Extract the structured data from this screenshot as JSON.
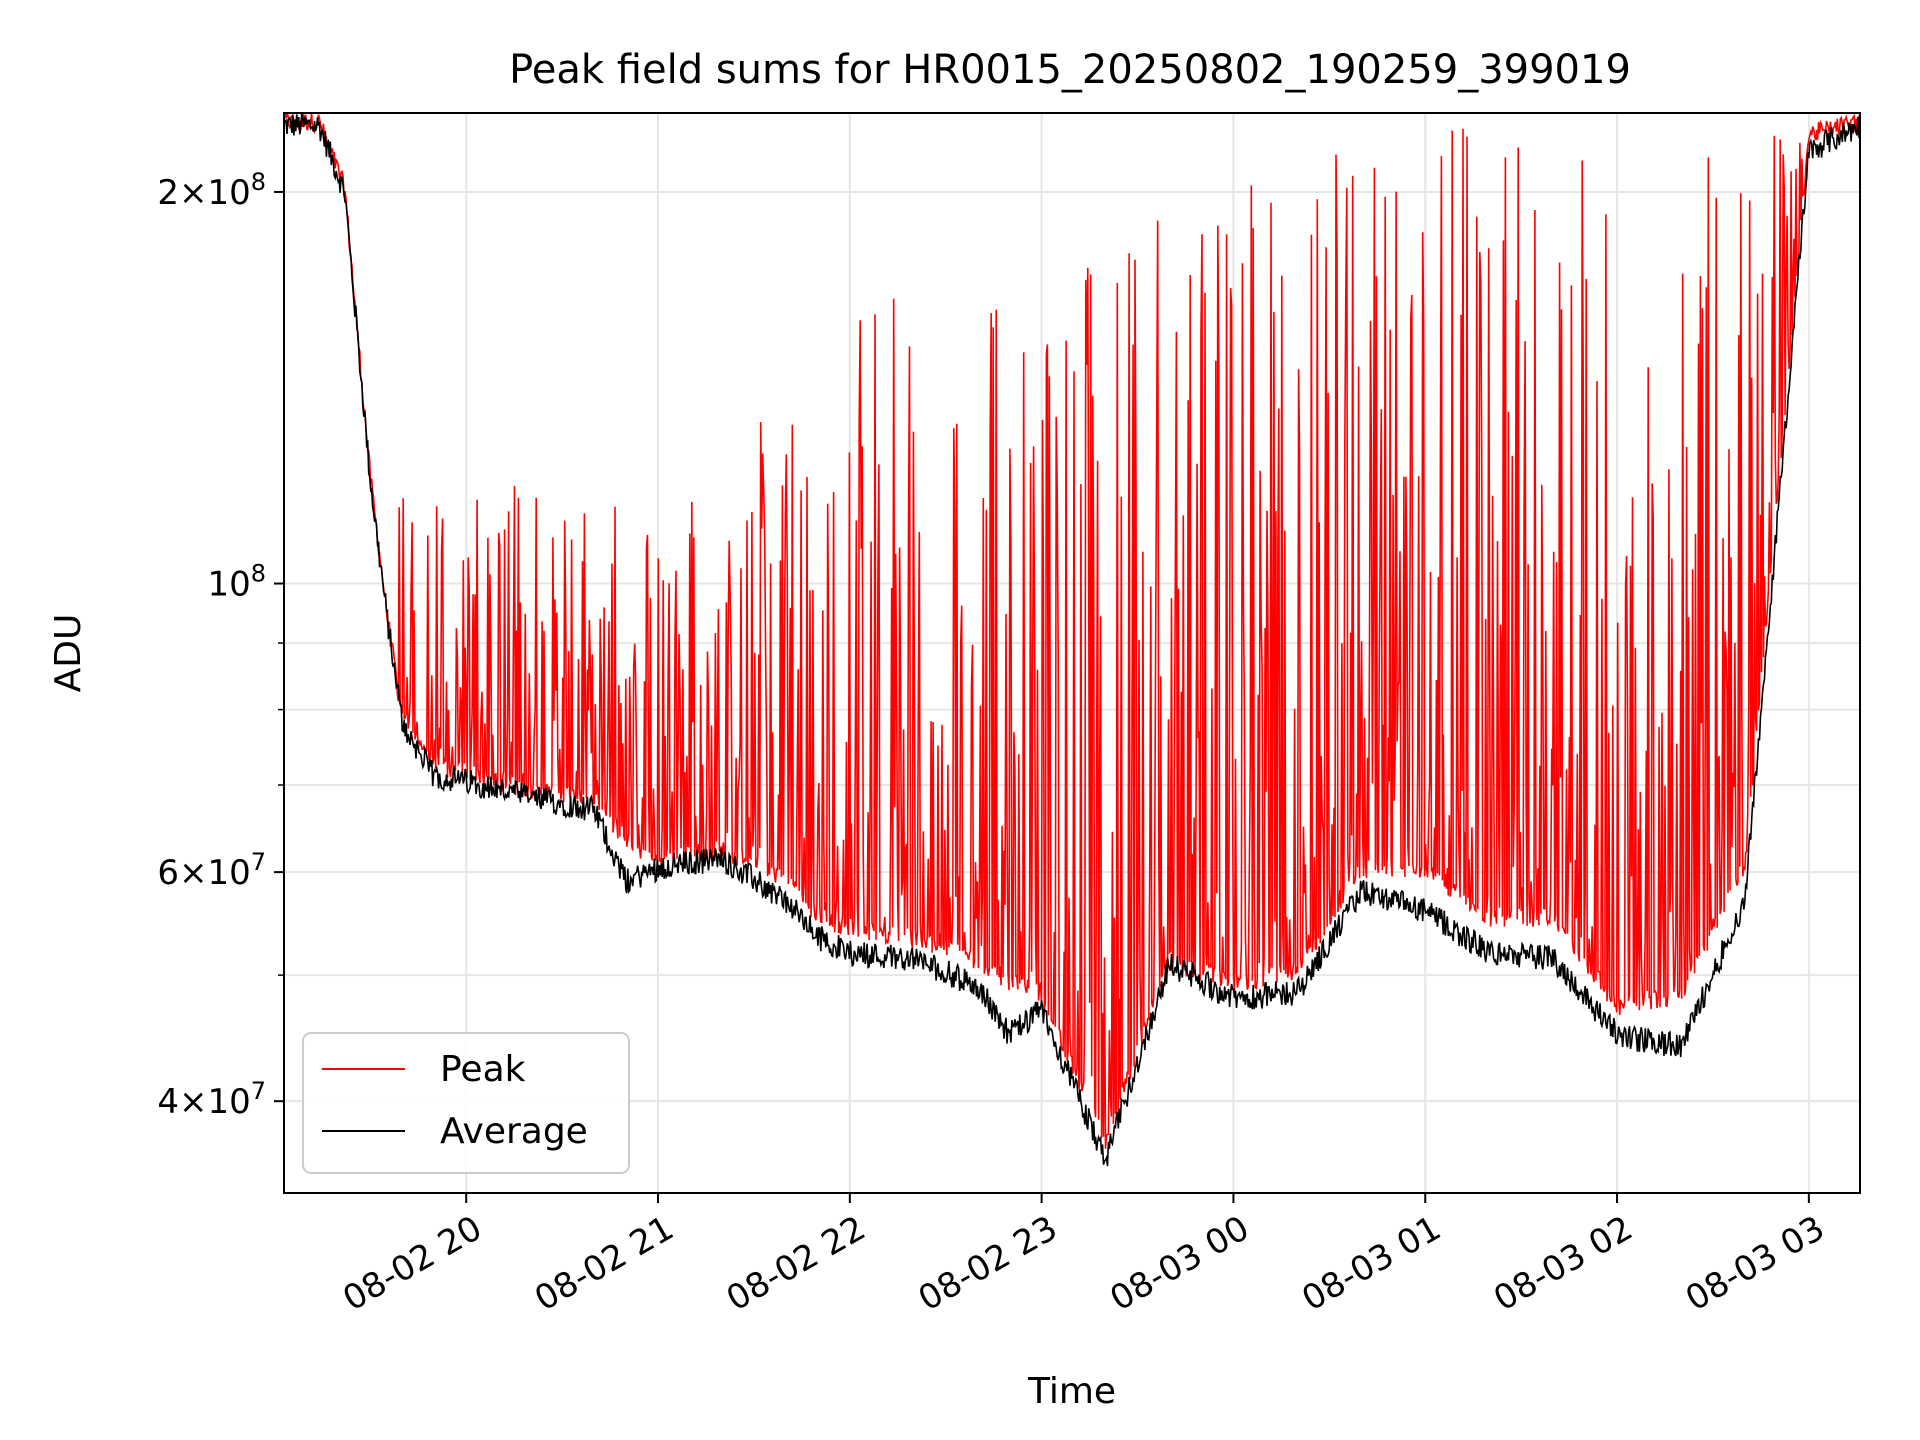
{
  "chart_data": {
    "type": "line",
    "title": "Peak field sums for HR0015_20250802_190259_399019",
    "xlabel": "Time",
    "ylabel": "ADU",
    "yscale": "log",
    "ylim": [
      34000000,
      230000000
    ],
    "xlim": [
      "2025-08-02 19:03",
      "2025-08-03 03:16"
    ],
    "grid": true,
    "legend_position": "lower-left",
    "x_ticks": [
      {
        "t": "2025-08-02 20:00",
        "label": "08-02 20"
      },
      {
        "t": "2025-08-02 21:00",
        "label": "08-02 21"
      },
      {
        "t": "2025-08-02 22:00",
        "label": "08-02 22"
      },
      {
        "t": "2025-08-02 23:00",
        "label": "08-02 23"
      },
      {
        "t": "2025-08-03 00:00",
        "label": "08-03 00"
      },
      {
        "t": "2025-08-03 01:00",
        "label": "08-03 01"
      },
      {
        "t": "2025-08-03 02:00",
        "label": "08-03 02"
      },
      {
        "t": "2025-08-03 03:00",
        "label": "08-03 03"
      }
    ],
    "y_ticks": [
      {
        "value": 40000000,
        "base": "4",
        "exp": "7"
      },
      {
        "value": 60000000,
        "base": "6",
        "exp": "7"
      },
      {
        "value": 100000000,
        "base": "",
        "exp": "8"
      },
      {
        "value": 200000000,
        "base": "2",
        "exp": "8"
      }
    ],
    "y_minor_ticks": [
      50000000,
      70000000,
      80000000,
      90000000
    ],
    "series": [
      {
        "name": "Peak",
        "color": "#ff0000",
        "x": [
          "2025-08-02 19:03",
          "2025-08-02 19:14",
          "2025-08-02 19:22",
          "2025-08-02 19:30",
          "2025-08-02 19:35",
          "2025-08-02 19:40",
          "2025-08-02 19:50",
          "2025-08-02 20:00",
          "2025-08-02 20:20",
          "2025-08-02 20:40",
          "2025-08-02 20:50",
          "2025-08-02 21:00",
          "2025-08-02 21:20",
          "2025-08-02 21:40",
          "2025-08-02 21:50",
          "2025-08-02 22:00",
          "2025-08-02 22:20",
          "2025-08-02 22:40",
          "2025-08-02 22:50",
          "2025-08-02 23:00",
          "2025-08-02 23:20",
          "2025-08-02 23:40",
          "2025-08-03 00:00",
          "2025-08-03 00:20",
          "2025-08-03 00:40",
          "2025-08-03 01:00",
          "2025-08-03 01:20",
          "2025-08-03 01:40",
          "2025-08-03 02:00",
          "2025-08-03 02:20",
          "2025-08-03 02:40",
          "2025-08-03 03:00",
          "2025-08-03 03:16"
        ],
        "y": [
          225000000,
          225000000,
          200000000,
          120000000,
          95000000,
          78000000,
          72000000,
          71000000,
          69000000,
          68000000,
          63000000,
          61000000,
          62000000,
          59000000,
          55000000,
          54000000,
          53000000,
          51000000,
          49000000,
          48000000,
          37000000,
          51000000,
          49000000,
          50000000,
          60000000,
          60000000,
          55000000,
          55000000,
          47000000,
          48000000,
          60000000,
          220000000,
          225000000
        ],
        "spike_envelope": [
          150000000,
          130000000,
          120000000,
          125000000,
          115000000,
          120000000,
          135000000,
          170000000,
          175000000,
          165000000,
          190000000,
          200000000,
          225000000,
          225000000,
          225000000,
          225000000,
          225000000,
          225000000,
          225000000,
          225000000
        ]
      },
      {
        "name": "Average",
        "color": "#000000",
        "x": [
          "2025-08-02 19:03",
          "2025-08-02 19:14",
          "2025-08-02 19:22",
          "2025-08-02 19:30",
          "2025-08-02 19:35",
          "2025-08-02 19:40",
          "2025-08-02 19:50",
          "2025-08-02 20:00",
          "2025-08-02 20:20",
          "2025-08-02 20:40",
          "2025-08-02 20:50",
          "2025-08-02 21:00",
          "2025-08-02 21:20",
          "2025-08-02 21:40",
          "2025-08-02 21:50",
          "2025-08-02 22:00",
          "2025-08-02 22:20",
          "2025-08-02 22:40",
          "2025-08-02 22:50",
          "2025-08-02 23:00",
          "2025-08-02 23:20",
          "2025-08-02 23:40",
          "2025-08-03 00:00",
          "2025-08-03 00:20",
          "2025-08-03 00:40",
          "2025-08-03 01:00",
          "2025-08-03 01:20",
          "2025-08-03 01:40",
          "2025-08-03 02:00",
          "2025-08-03 02:20",
          "2025-08-03 02:40",
          "2025-08-03 03:00",
          "2025-08-03 03:16"
        ],
        "y": [
          225000000,
          225000000,
          200000000,
          120000000,
          95000000,
          78000000,
          71000000,
          70500000,
          68500000,
          67000000,
          59000000,
          60500000,
          61500000,
          57000000,
          53500000,
          52000000,
          51500000,
          49000000,
          45000000,
          47000000,
          36000000,
          51000000,
          48000000,
          48500000,
          58000000,
          56000000,
          52000000,
          51500000,
          45000000,
          44000000,
          57000000,
          215000000,
          225000000
        ]
      }
    ]
  }
}
